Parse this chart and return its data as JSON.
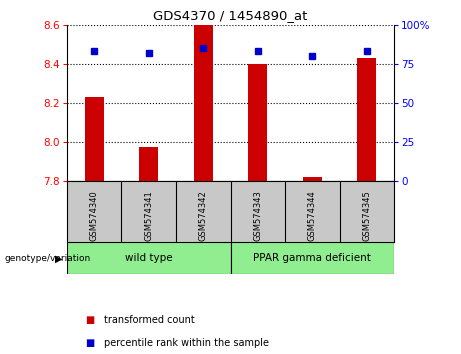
{
  "title": "GDS4370 / 1454890_at",
  "samples": [
    "GSM574340",
    "GSM574341",
    "GSM574342",
    "GSM574343",
    "GSM574344",
    "GSM574345"
  ],
  "bar_values": [
    8.23,
    7.97,
    8.6,
    8.4,
    7.82,
    8.43
  ],
  "percentile_values": [
    83,
    82,
    85,
    83,
    80,
    83
  ],
  "ymin": 7.8,
  "ymax": 8.6,
  "y2min": 0,
  "y2max": 100,
  "yticks": [
    7.8,
    8.0,
    8.2,
    8.4,
    8.6
  ],
  "y2ticks": [
    0,
    25,
    50,
    75,
    100
  ],
  "bar_color": "#cc0000",
  "dot_color": "#0000cc",
  "group_labels": [
    "wild type",
    "PPAR gamma deficient"
  ],
  "group_starts": [
    0,
    3
  ],
  "group_ends": [
    3,
    6
  ],
  "group_color": "#90ee90",
  "tick_area_color": "#c8c8c8",
  "legend_items": [
    {
      "label": "transformed count",
      "color": "#cc0000"
    },
    {
      "label": "percentile rank within the sample",
      "color": "#0000cc"
    }
  ],
  "genotype_label": "genotype/variation",
  "bar_width": 0.35
}
